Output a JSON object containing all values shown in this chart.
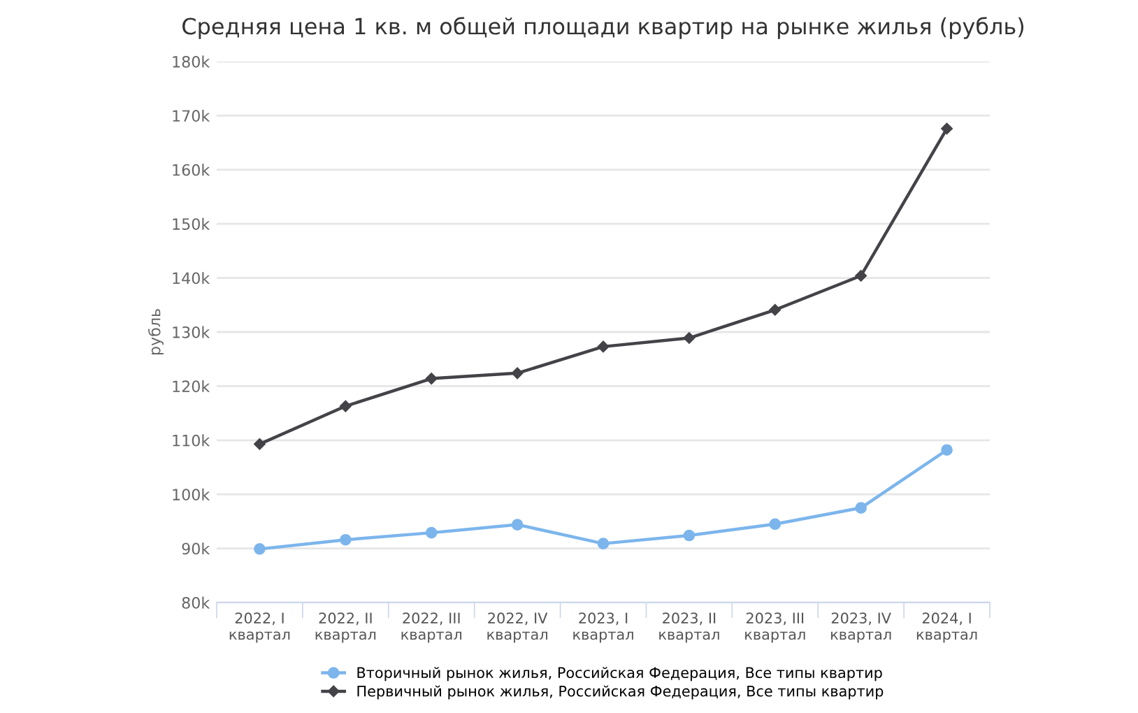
{
  "chart_data": {
    "type": "line",
    "title": "Средняя цена 1 кв. м общей площади квартир на рынке жилья (рубль)",
    "ylabel": "рубль",
    "categories": [
      "2022, I\nквартал",
      "2022, II\nквартал",
      "2022, III\nквартал",
      "2022, IV\nквартал",
      "2023, I\nквартал",
      "2023, II\nквартал",
      "2023, III\nквартал",
      "2023, IV\nквартал",
      "2024, I\nквартал"
    ],
    "series": [
      {
        "name": "Вторичный рынок жилья, Российская Федерация, Все типы квартир",
        "color": "#7cb5ec",
        "marker": "circle",
        "values": [
          89900,
          91600,
          92900,
          94400,
          90900,
          92400,
          94500,
          97500,
          108200
        ]
      },
      {
        "name": "Первичный рынок жилья, Российская Федерация, Все типы квартир",
        "color": "#434348",
        "marker": "diamond",
        "values": [
          109300,
          116300,
          121400,
          122400,
          127300,
          128900,
          134100,
          140400,
          167600
        ]
      }
    ],
    "ylim": [
      80000,
      180000
    ],
    "yticks": [
      {
        "value": 80000,
        "label": "80k"
      },
      {
        "value": 90000,
        "label": "90k"
      },
      {
        "value": 100000,
        "label": "100k"
      },
      {
        "value": 110000,
        "label": "110k"
      },
      {
        "value": 120000,
        "label": "120k"
      },
      {
        "value": 130000,
        "label": "130k"
      },
      {
        "value": 140000,
        "label": "140k"
      },
      {
        "value": 150000,
        "label": "150k"
      },
      {
        "value": 160000,
        "label": "160k"
      },
      {
        "value": 170000,
        "label": "170k"
      },
      {
        "value": 180000,
        "label": "180k"
      }
    ],
    "grid": "y",
    "legend": "bottom"
  }
}
